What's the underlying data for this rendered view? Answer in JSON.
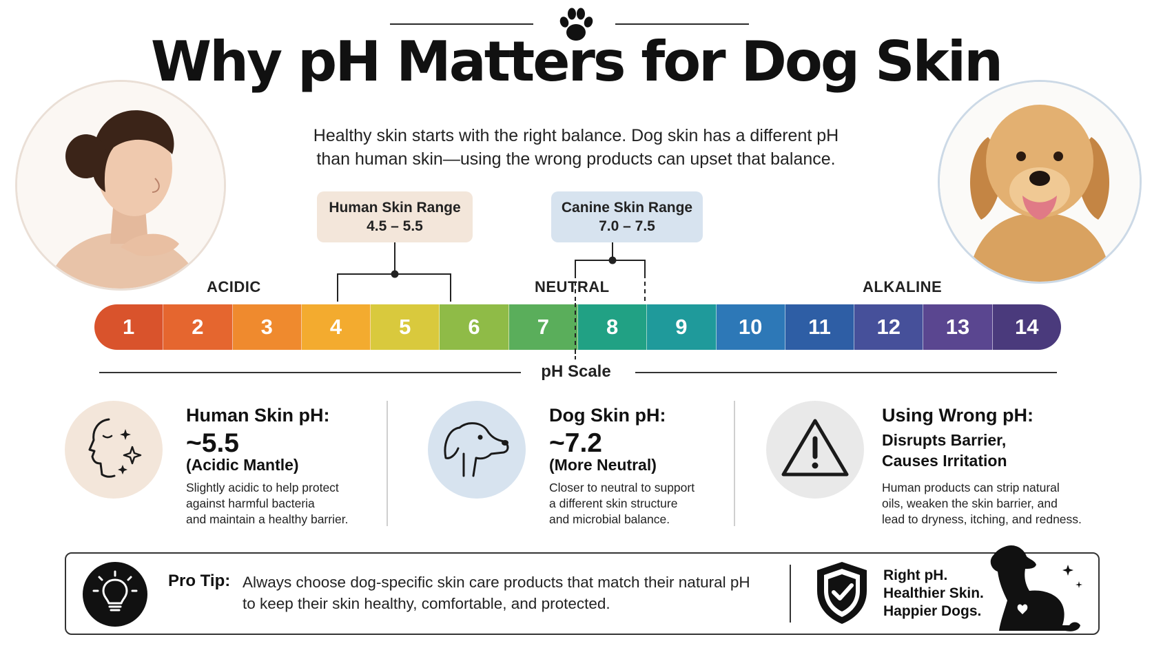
{
  "header": {
    "title": "Why pH Matters for Dog Skin",
    "subtitle_lines": [
      "Healthy skin starts with the right balance. Dog skin has a different pH",
      "than human skin—using the wrong products can upset that balance."
    ]
  },
  "ranges": {
    "human": {
      "label": "Human Skin Range",
      "value": "4.5 – 5.5",
      "min": 4.5,
      "max": 5.5,
      "color": "#f3e6da"
    },
    "canine": {
      "label": "Canine Skin Range",
      "value": "7.0 – 7.5",
      "min": 7.0,
      "max": 7.5,
      "color": "#d7e3ef"
    }
  },
  "scale": {
    "caption": "pH Scale",
    "acidic_label": "ACIDIC",
    "neutral_label": "NEUTRAL",
    "alkaline_label": "ALKALINE",
    "neutral_value": 7,
    "segments": [
      {
        "label": "1",
        "color": "#d9532c"
      },
      {
        "label": "2",
        "color": "#e5662f"
      },
      {
        "label": "3",
        "color": "#ef8a2e"
      },
      {
        "label": "4",
        "color": "#f3ab2f"
      },
      {
        "label": "5",
        "color": "#d9c93d"
      },
      {
        "label": "6",
        "color": "#8fbb47"
      },
      {
        "label": "7",
        "color": "#5aae5b"
      },
      {
        "label": "8",
        "color": "#21a184"
      },
      {
        "label": "9",
        "color": "#1f9a9b"
      },
      {
        "label": "10",
        "color": "#2d78b7"
      },
      {
        "label": "11",
        "color": "#2e5ea5"
      },
      {
        "label": "12",
        "color": "#46509a"
      },
      {
        "label": "13",
        "color": "#5a4690"
      },
      {
        "label": "14",
        "color": "#4a3a7c"
      }
    ]
  },
  "cards": {
    "human": {
      "title": "Human Skin pH:",
      "value": "~5.5",
      "subtitle": "(Acidic Mantle)",
      "body_lines": [
        "Slightly acidic to help protect",
        "against harmful bacteria",
        "and maintain a healthy barrier."
      ],
      "icon": "face-sparkle-icon",
      "icon_bg": "#f3e6da"
    },
    "dog": {
      "title": "Dog Skin pH:",
      "value": "~7.2",
      "subtitle": "(More Neutral)",
      "body_lines": [
        "Closer to neutral to support",
        "a different skin structure",
        "and microbial balance."
      ],
      "icon": "dog-head-icon",
      "icon_bg": "#d7e3ef"
    },
    "wrong": {
      "title": "Using Wrong pH:",
      "subtitle_lines": [
        "Disrupts Barrier,",
        "Causes Irritation"
      ],
      "body_lines": [
        "Human products can strip natural",
        "oils, weaken the skin barrier, and",
        "lead to dryness, itching, and redness."
      ],
      "icon": "warning-icon",
      "icon_bg": "#e9e9e9"
    }
  },
  "tip": {
    "label": "Pro Tip:",
    "lines": [
      "Always choose dog-specific skin care products that match their natural pH",
      "to keep their skin healthy, comfortable, and protected."
    ],
    "slogan_lines": [
      "Right pH.",
      "Healthier Skin.",
      "Happier Dogs."
    ],
    "icons": [
      "lightbulb-icon",
      "shield-check-icon",
      "dog-silhouette-icon"
    ]
  }
}
